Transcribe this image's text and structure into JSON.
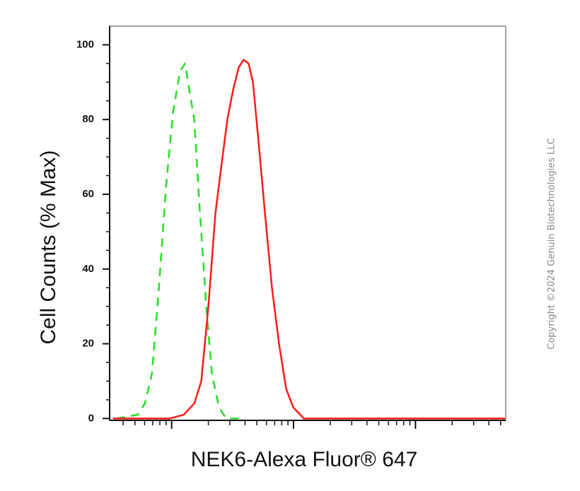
{
  "chart_data": {
    "type": "line",
    "ylabel": "Cell Counts (% Max)",
    "xlabel": "NEK6-Alexa Fluor® 647",
    "annotation": "Copyright ©2024 Genuin Biotechnologies LLC",
    "xscale": "log",
    "xlim": [
      31,
      55000
    ],
    "xticks": [
      100,
      1000,
      10000
    ],
    "xminorticks": [
      40,
      50,
      60,
      70,
      80,
      90,
      200,
      300,
      400,
      500,
      600,
      700,
      800,
      900,
      2000,
      3000,
      4000,
      5000,
      6000,
      7000,
      8000,
      9000,
      20000,
      30000,
      40000,
      50000
    ],
    "ylim": [
      -0.5,
      105
    ],
    "yticks": [
      0,
      20,
      40,
      60,
      80,
      100
    ],
    "yminorticks": [
      5,
      10,
      15,
      25,
      30,
      35,
      45,
      50,
      55,
      65,
      70,
      75,
      85,
      90,
      95
    ],
    "series": [
      {
        "color": "#22e022",
        "linestyle": "dashed",
        "x": [
          35.3,
          52.7,
          60.3,
          68.9,
          78.7,
          89.9,
          102.7,
          117.4,
          128.8,
          139.6,
          153.3,
          170.6,
          192.3,
          213.9,
          244.5,
          279.3,
          400
        ],
        "values": [
          0,
          1,
          4,
          12,
          35,
          62,
          82,
          93,
          95,
          88,
          80,
          55,
          30,
          12,
          3,
          0,
          0
        ]
      },
      {
        "color": "#ff1a1a",
        "linestyle": "solid",
        "x": [
          33.0,
          96.2,
          125.6,
          153.3,
          175.0,
          200.0,
          228.6,
          261.3,
          286.8,
          319.4,
          355.4,
          390.0,
          428.2,
          464.2,
          509.5,
          582.3,
          665.4,
          760.5,
          868.8,
          993.1,
          1213,
          54450
        ],
        "values": [
          0,
          0,
          1,
          4,
          10,
          30,
          55,
          70,
          80,
          88,
          94,
          96,
          95,
          90,
          76,
          55,
          35,
          20,
          8,
          3,
          0,
          0
        ]
      }
    ]
  }
}
